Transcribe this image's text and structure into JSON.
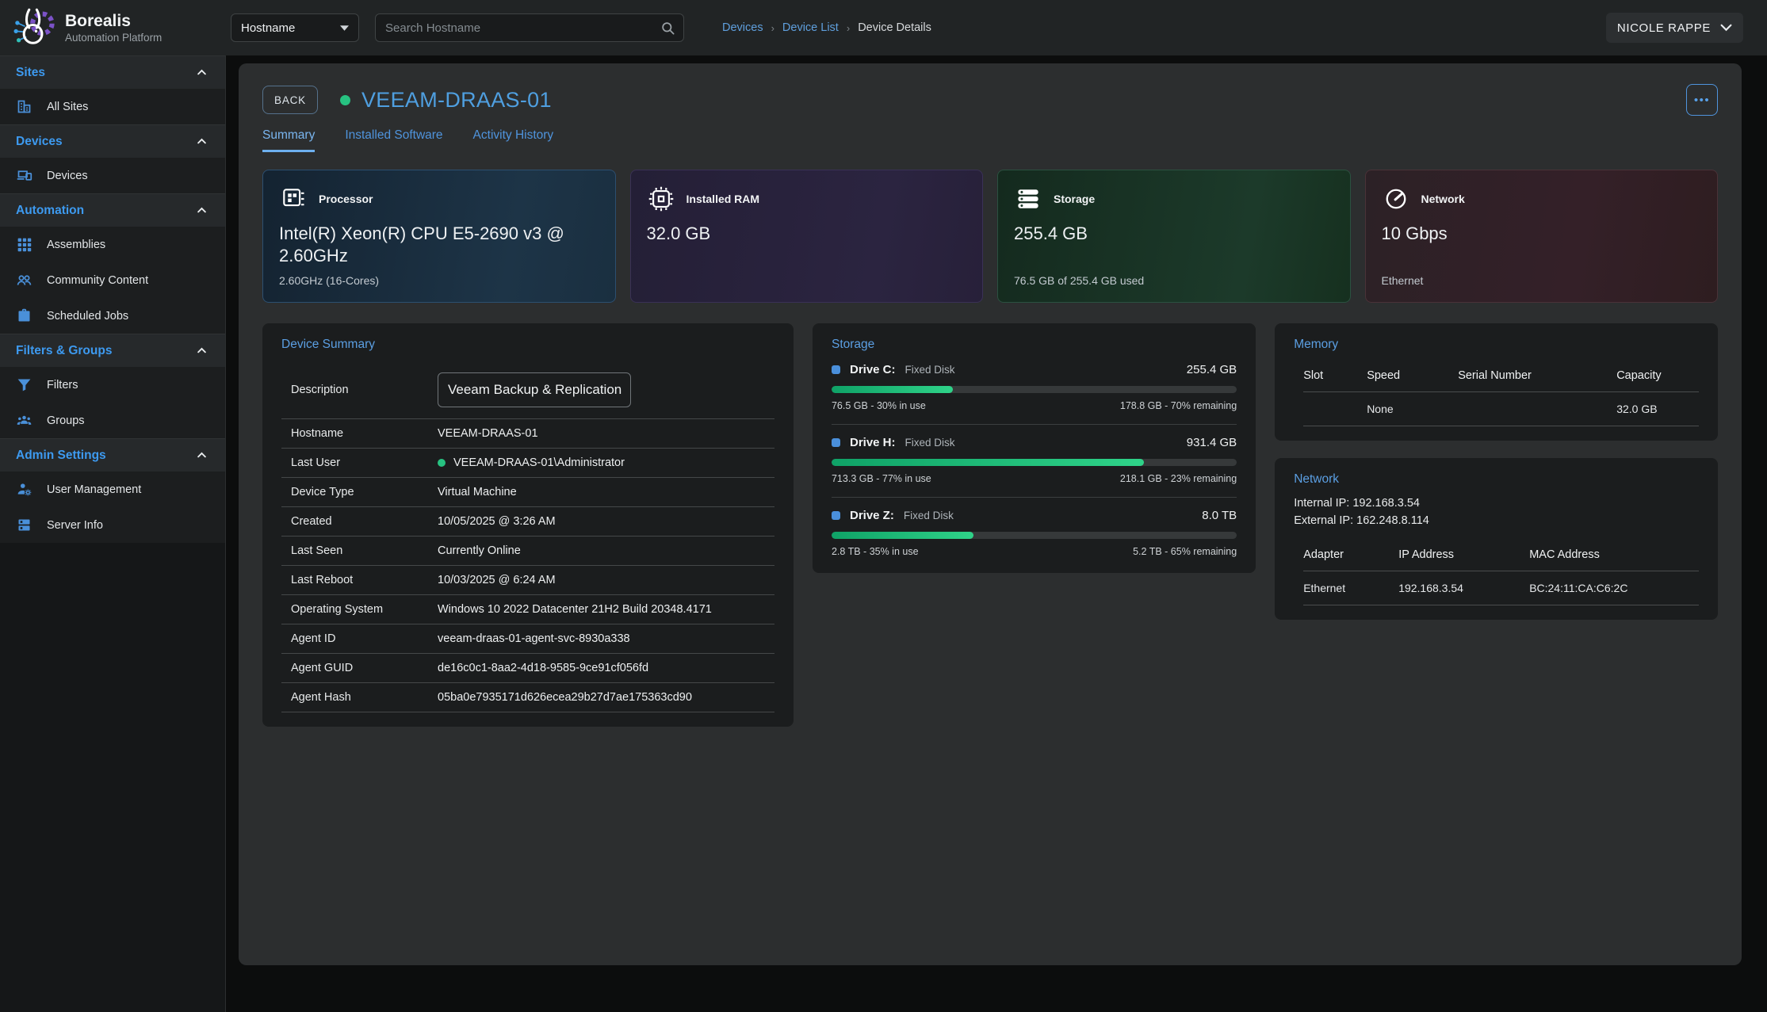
{
  "colors": {
    "accent_blue": "#4f9fe0",
    "link_blue": "#5f9fdd",
    "sidebar_blue": "#3d9af0",
    "online_green": "#27c281",
    "progress_green_start": "#0fa267",
    "progress_green_end": "#2fd389",
    "card_processor_bg": "#1d3447",
    "card_ram_bg": "#2b2440",
    "card_storage_bg": "#1c3a2a",
    "card_network_bg": "#342028",
    "panel_bg": "#1b1d1e",
    "content_bg": "#2c2e2f",
    "topbar_bg": "#212425"
  },
  "brand": {
    "name": "Borealis",
    "subtitle": "Automation Platform",
    "logo_icon": "rabbit-logo"
  },
  "topbar": {
    "filter_field": {
      "value": "Hostname",
      "caret_icon": "caret-down-icon"
    },
    "search": {
      "placeholder": "Search Hostname",
      "icon": "search-icon"
    },
    "breadcrumb": {
      "items": [
        {
          "label": "Devices"
        },
        {
          "label": "Device List"
        },
        {
          "label": "Device Details"
        }
      ],
      "separator": "›"
    },
    "user": {
      "name": "NICOLE RAPPE",
      "caret_icon": "chevron-down-icon"
    }
  },
  "sidebar": {
    "sections": [
      {
        "label": "Sites",
        "chevron_icon": "chevron-up-icon",
        "items": [
          {
            "label": "All Sites",
            "icon": "building-icon"
          }
        ]
      },
      {
        "label": "Devices",
        "chevron_icon": "chevron-up-icon",
        "items": [
          {
            "label": "Devices",
            "icon": "devices-icon"
          }
        ]
      },
      {
        "label": "Automation",
        "chevron_icon": "chevron-up-icon",
        "items": [
          {
            "label": "Assemblies",
            "icon": "grid-icon"
          },
          {
            "label": "Community Content",
            "icon": "community-icon"
          },
          {
            "label": "Scheduled Jobs",
            "icon": "briefcase-icon"
          }
        ]
      },
      {
        "label": "Filters & Groups",
        "chevron_icon": "chevron-up-icon",
        "items": [
          {
            "label": "Filters",
            "icon": "filter-icon"
          },
          {
            "label": "Groups",
            "icon": "groups-icon"
          }
        ]
      },
      {
        "label": "Admin Settings",
        "chevron_icon": "chevron-up-icon",
        "items": [
          {
            "label": "User Management",
            "icon": "user-gear-icon"
          },
          {
            "label": "Server Info",
            "icon": "server-icon"
          }
        ]
      }
    ]
  },
  "device_header": {
    "back_label": "BACK",
    "status": "online",
    "name": "VEEAM-DRAAS-01",
    "menu_label": "•••",
    "menu_icon": "ellipsis-icon"
  },
  "tabs": {
    "items": [
      {
        "label": "Summary",
        "active": true
      },
      {
        "label": "Installed Software",
        "active": false
      },
      {
        "label": "Activity History",
        "active": false
      }
    ]
  },
  "stat_cards": [
    {
      "icon": "cpu-icon",
      "label": "Processor",
      "value": "Intel(R) Xeon(R) CPU E5-2690 v3 @ 2.60GHz",
      "secondary": "2.60GHz (16-Cores)"
    },
    {
      "icon": "ram-chip-icon",
      "label": "Installed RAM",
      "value": "32.0 GB",
      "secondary": ""
    },
    {
      "icon": "disk-stack-icon",
      "label": "Storage",
      "value": "255.4 GB",
      "secondary": "76.5 GB of 255.4 GB used"
    },
    {
      "icon": "speedometer-icon",
      "label": "Network",
      "value": "10 Gbps",
      "secondary": "Ethernet"
    }
  ],
  "device_summary": {
    "title": "Device Summary",
    "description": {
      "label": "Description",
      "value": "Veeam Backup & Replication"
    },
    "rows": [
      {
        "label": "Hostname",
        "value": "VEEAM-DRAAS-01"
      },
      {
        "label": "Last User",
        "value": "VEEAM-DRAAS-01\\Administrator",
        "online": true
      },
      {
        "label": "Device Type",
        "value": "Virtual Machine"
      },
      {
        "label": "Created",
        "value": "10/05/2025 @ 3:26 AM"
      },
      {
        "label": "Last Seen",
        "value": "Currently Online"
      },
      {
        "label": "Last Reboot",
        "value": "10/03/2025 @ 6:24 AM"
      },
      {
        "label": "Operating System",
        "value": "Windows 10 2022 Datacenter 21H2 Build 20348.4171"
      },
      {
        "label": "Agent ID",
        "value": "veeam-draas-01-agent-svc-8930a338"
      },
      {
        "label": "Agent GUID",
        "value": "de16c0c1-8aa2-4d18-9585-9ce91cf056fd"
      },
      {
        "label": "Agent Hash",
        "value": "05ba0e7935171d626ecea29b27d7ae175363cd90"
      }
    ]
  },
  "storage_panel": {
    "title": "Storage",
    "drives": [
      {
        "name": "Drive C:",
        "type": "Fixed Disk",
        "size": "255.4 GB",
        "used_percent": 30,
        "used_label": "76.5 GB - 30% in use",
        "remaining_label": "178.8 GB - 70% remaining"
      },
      {
        "name": "Drive H:",
        "type": "Fixed Disk",
        "size": "931.4 GB",
        "used_percent": 77,
        "used_label": "713.3 GB - 77% in use",
        "remaining_label": "218.1 GB - 23% remaining"
      },
      {
        "name": "Drive Z:",
        "type": "Fixed Disk",
        "size": "8.0 TB",
        "used_percent": 35,
        "used_label": "2.8 TB - 35% in use",
        "remaining_label": "5.2 TB - 65% remaining"
      }
    ]
  },
  "memory_panel": {
    "title": "Memory",
    "columns": [
      "Slot",
      "Speed",
      "Serial Number",
      "Capacity"
    ],
    "rows": [
      {
        "slot": "",
        "speed": "None",
        "serial": "",
        "capacity": "32.0 GB"
      }
    ]
  },
  "network_panel": {
    "title": "Network",
    "internal_ip_label": "Internal IP: 192.168.3.54",
    "external_ip_label": "External IP: 162.248.8.114",
    "columns": [
      "Adapter",
      "IP Address",
      "MAC Address"
    ],
    "rows": [
      {
        "adapter": "Ethernet",
        "ip": "192.168.3.54",
        "mac": "BC:24:11:CA:C6:2C"
      }
    ]
  }
}
